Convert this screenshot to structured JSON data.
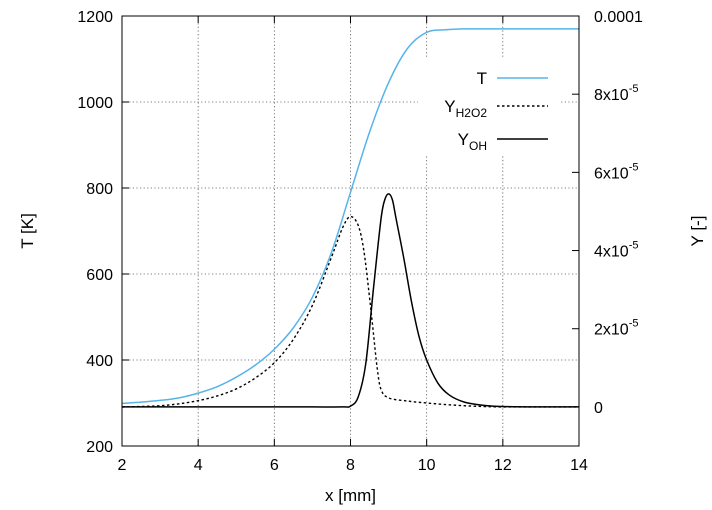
{
  "chart_data": {
    "type": "line",
    "xlabel": "x [mm]",
    "ylabel_left": "T [K]",
    "ylabel_right": "Y [-]",
    "xlim": [
      2,
      14
    ],
    "ylim_left": [
      200,
      1200
    ],
    "ylim_right": [
      -1e-05,
      0.0001
    ],
    "grid": true,
    "legend_position": "top-right",
    "x_ticks": [
      2,
      4,
      6,
      8,
      10,
      12,
      14
    ],
    "y_left_ticks": [
      200,
      400,
      600,
      800,
      1000,
      1200
    ],
    "y_right_ticks": [
      {
        "value": 0,
        "base": "0",
        "exp": ""
      },
      {
        "value": 2e-05,
        "base": "2x10",
        "exp": "-5"
      },
      {
        "value": 4e-05,
        "base": "4x10",
        "exp": "-5"
      },
      {
        "value": 6e-05,
        "base": "6x10",
        "exp": "-5"
      },
      {
        "value": 8e-05,
        "base": "8x10",
        "exp": "-5"
      },
      {
        "value": 0.0001,
        "base": "0.0001",
        "exp": ""
      }
    ],
    "series": [
      {
        "name": "T",
        "axis": "left",
        "color": "#56b4e9",
        "dash": "solid",
        "x": [
          2,
          2.5,
          3,
          3.5,
          4,
          4.5,
          5,
          5.5,
          6,
          6.5,
          7,
          7.5,
          8,
          8.5,
          9,
          9.5,
          10,
          10.5,
          11,
          11.5,
          12,
          13,
          14
        ],
        "y": [
          299,
          302,
          306,
          312,
          323,
          338,
          360,
          388,
          425,
          475,
          546,
          650,
          790,
          930,
          1045,
          1125,
          1162,
          1168,
          1170,
          1170,
          1170,
          1170,
          1170
        ]
      },
      {
        "name_base": "Y",
        "name_sub": "H2O2",
        "axis": "right",
        "color": "#000000",
        "dash": "dotted",
        "x": [
          2,
          2.5,
          3,
          3.5,
          4,
          4.5,
          5,
          5.5,
          6,
          6.5,
          7,
          7.5,
          7.8,
          8,
          8.2,
          8.35,
          8.5,
          8.6,
          8.7,
          8.8,
          9,
          9.5,
          10,
          10.5,
          11,
          11.5,
          12,
          13,
          14
        ],
        "y": [
          0,
          1e-07,
          3e-07,
          8e-07,
          1.6e-06,
          2.8e-06,
          4.6e-06,
          7.4e-06,
          1.13e-05,
          1.73e-05,
          2.6e-05,
          3.83e-05,
          4.6e-05,
          4.87e-05,
          4.65e-05,
          4e-05,
          2.8e-05,
          1.9e-05,
          1e-05,
          4.5e-06,
          2.3e-06,
          1.5e-06,
          1e-06,
          6e-07,
          3e-07,
          1e-07,
          0,
          0,
          0
        ]
      },
      {
        "name_base": "Y",
        "name_sub": "OH",
        "axis": "right",
        "color": "#000000",
        "dash": "solid",
        "x": [
          2,
          3,
          4,
          5,
          6,
          7,
          7.8,
          8.0,
          8.2,
          8.4,
          8.6,
          8.8,
          8.9,
          9.0,
          9.1,
          9.2,
          9.4,
          9.6,
          9.8,
          10.0,
          10.3,
          10.6,
          11,
          11.5,
          12,
          13,
          14
        ],
        "y": [
          0,
          0,
          0,
          0,
          0,
          0,
          0,
          2e-07,
          2.5e-06,
          1.1e-05,
          3e-05,
          4.8e-05,
          5.3e-05,
          5.45e-05,
          5.3e-05,
          4.8e-05,
          3.8e-05,
          2.7e-05,
          1.8e-05,
          1.2e-05,
          6e-06,
          3e-06,
          1.2e-06,
          4e-07,
          1e-07,
          0,
          0
        ]
      }
    ]
  }
}
